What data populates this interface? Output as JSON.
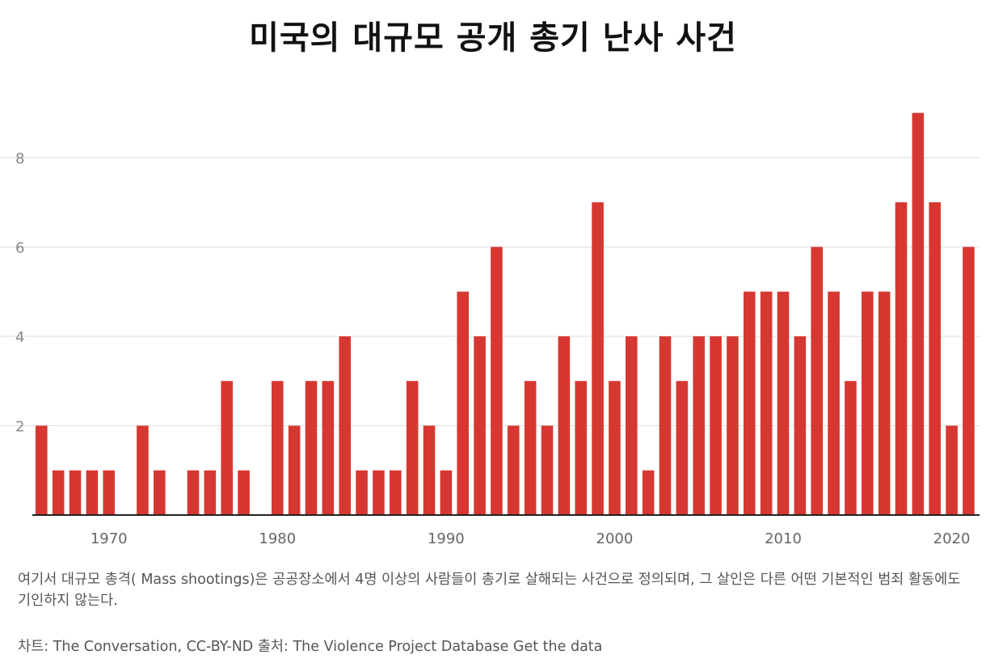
{
  "title": "미국의 대규모 공개 총기 난사 사건",
  "description": "여기서 대규모 총격( Mass shootings)은 공공장소에서 4명 이상의 사람들이 총기로 살해되는 사건으로 정의되며, 그 살인은 다른 어떤 기본적인 범죄 활동에도 기인하지 않는다.",
  "source": "차트: The Conversation, CC-BY-ND 출처: The Violence Project Database Get the data",
  "colors": {
    "bar": "#d63831",
    "grid": "#dddddd",
    "axis": "#222222"
  },
  "chart_data": {
    "type": "bar",
    "title": "미국의 대규모 공개 총기 난사 사건",
    "xlabel": "",
    "ylabel": "",
    "x": [
      1966,
      1967,
      1968,
      1969,
      1970,
      1971,
      1972,
      1973,
      1974,
      1975,
      1976,
      1977,
      1978,
      1979,
      1980,
      1981,
      1982,
      1983,
      1984,
      1985,
      1986,
      1987,
      1988,
      1989,
      1990,
      1991,
      1992,
      1993,
      1994,
      1995,
      1996,
      1997,
      1998,
      1999,
      2000,
      2001,
      2002,
      2003,
      2004,
      2005,
      2006,
      2007,
      2008,
      2009,
      2010,
      2011,
      2012,
      2013,
      2014,
      2015,
      2016,
      2017,
      2018,
      2019,
      2020,
      2021
    ],
    "values": [
      2,
      1,
      1,
      1,
      1,
      0,
      2,
      1,
      0,
      1,
      1,
      3,
      1,
      0,
      3,
      2,
      3,
      3,
      4,
      1,
      1,
      1,
      3,
      2,
      1,
      5,
      4,
      6,
      2,
      3,
      2,
      4,
      3,
      7,
      3,
      4,
      1,
      4,
      3,
      4,
      4,
      4,
      5,
      5,
      5,
      4,
      6,
      5,
      3,
      5,
      5,
      7,
      9,
      7,
      2,
      6
    ],
    "xlim": [
      1966,
      2021
    ],
    "ylim": [
      0,
      9.5
    ],
    "x_ticks": [
      1970,
      1980,
      1990,
      2000,
      2010,
      2020
    ],
    "y_ticks": [
      2,
      4,
      6,
      8
    ],
    "grid": true,
    "legend": "none"
  }
}
